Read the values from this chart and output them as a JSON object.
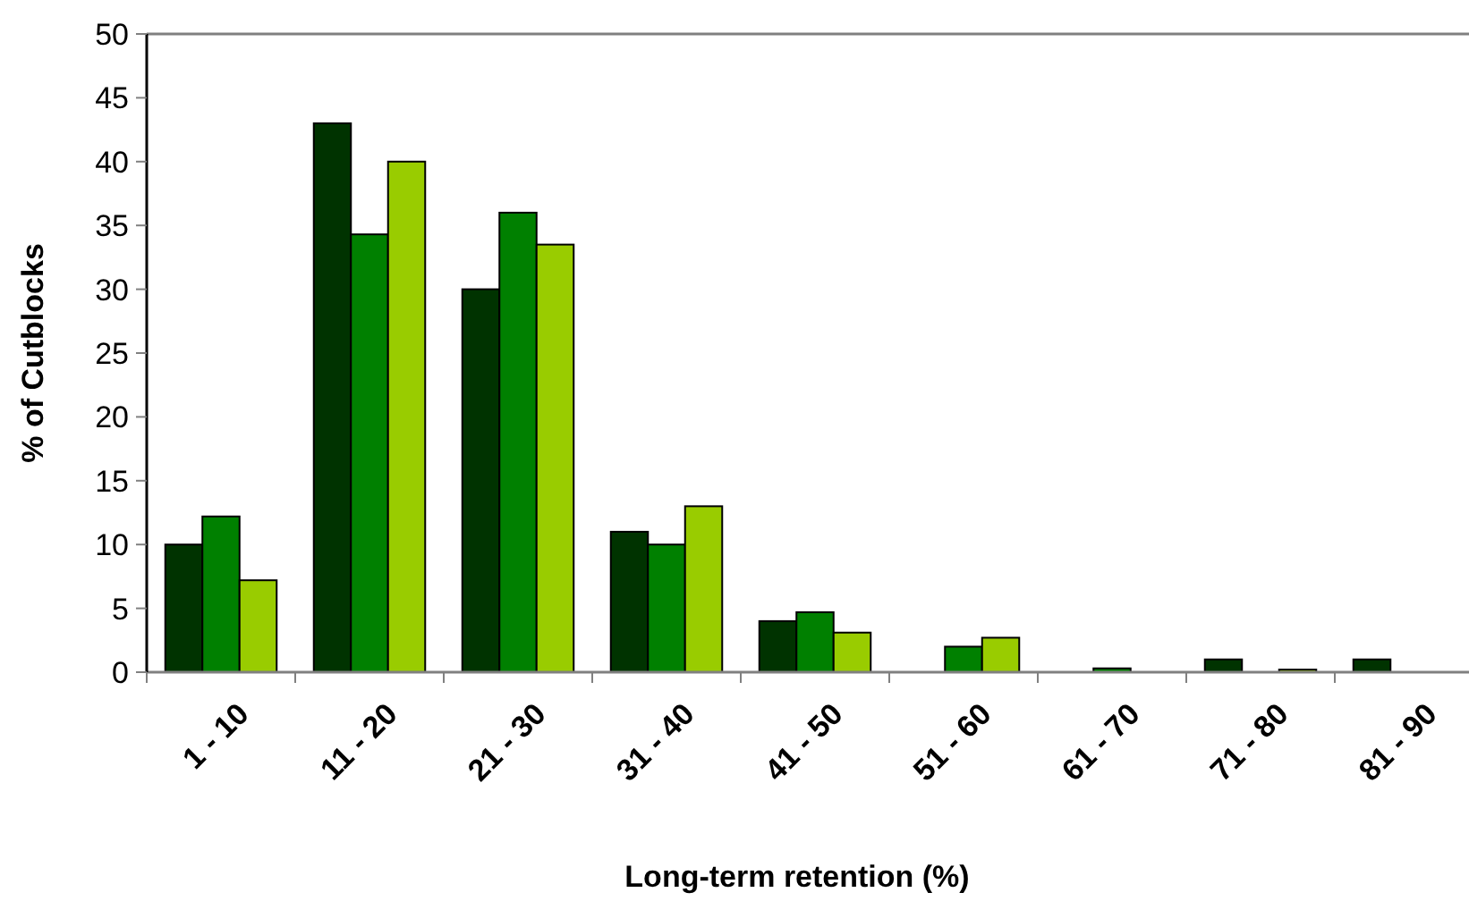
{
  "chart_data": {
    "type": "bar",
    "xlabel": "Long-term retention (%)",
    "ylabel": "% of Cutblocks",
    "categories": [
      "1 - 10",
      "11 - 20",
      "21 - 30",
      "31 - 40",
      "41 - 50",
      "51 - 60",
      "61 - 70",
      "71 - 80",
      "81 - 90"
    ],
    "series": [
      {
        "color": "#003300",
        "values": [
          10,
          43,
          30,
          11,
          4,
          0,
          0,
          1,
          1
        ]
      },
      {
        "color": "#008000",
        "values": [
          12.2,
          34.3,
          36,
          10,
          4.7,
          2,
          0.3,
          null,
          0
        ]
      },
      {
        "color": "#99cc00",
        "values": [
          7.2,
          40,
          33.5,
          13,
          3.1,
          2.7,
          0,
          0.2,
          0
        ]
      }
    ],
    "ylim": [
      0,
      50
    ],
    "yticks": [
      0,
      5,
      10,
      15,
      20,
      25,
      30,
      35,
      40,
      45,
      50
    ],
    "grid": false
  }
}
